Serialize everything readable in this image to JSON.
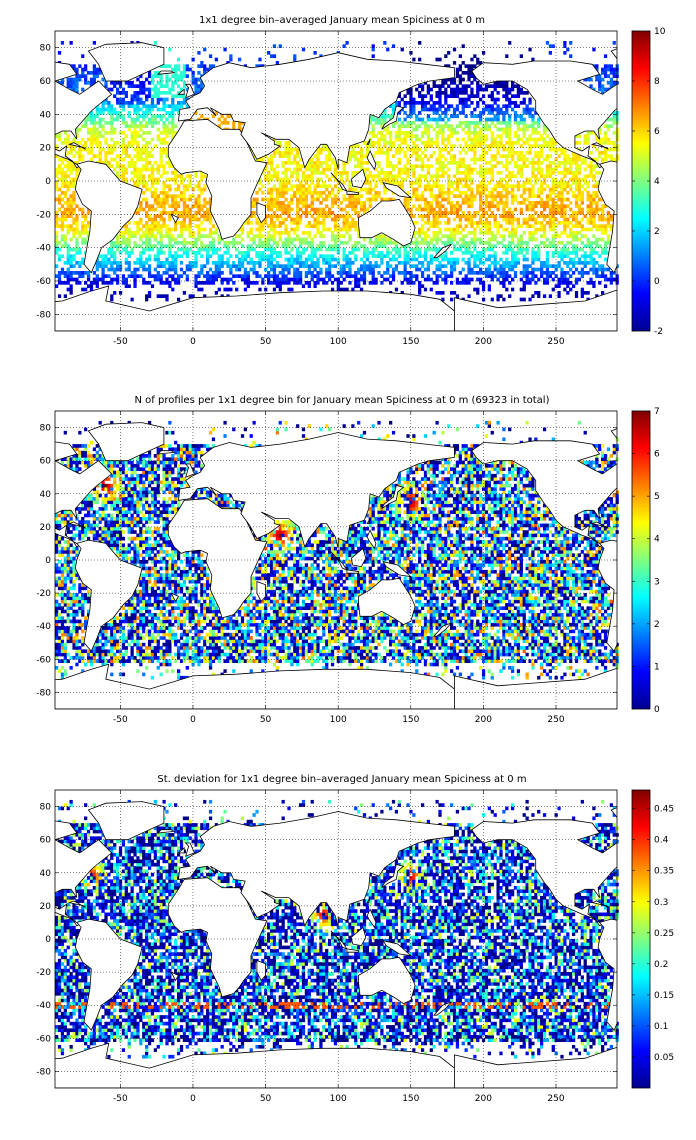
{
  "panels": [
    {
      "title": "1x1 degree bin–averaged January mean Spiciness at 0 m",
      "field": "mean",
      "colorbar": {
        "min": -2,
        "max": 10,
        "ticks": [
          "-2",
          "0",
          "2",
          "4",
          "6",
          "8",
          "10"
        ]
      }
    },
    {
      "title": "N of profiles per 1x1 degree bin for January mean Spiciness at 0 m (69323 in total)",
      "field": "count",
      "colorbar": {
        "min": 0,
        "max": 7,
        "ticks": [
          "0",
          "1",
          "2",
          "3",
          "4",
          "5",
          "6",
          "7"
        ]
      }
    },
    {
      "title": "St. deviation for 1x1 degree bin–averaged January mean Spiciness at 0 m",
      "field": "std",
      "colorbar": {
        "min": 0,
        "max": 0.48,
        "ticks": [
          "0.05",
          "0.1",
          "0.15",
          "0.2",
          "0.25",
          "0.3",
          "0.35",
          "0.4",
          "0.45"
        ]
      }
    }
  ],
  "chart_data": [
    {
      "type": "heatmap",
      "title": "1x1 degree bin–averaged January mean Spiciness at 0 m",
      "xlabel": "",
      "ylabel": "",
      "xlim": [
        -95,
        292
      ],
      "ylim": [
        -90,
        90
      ],
      "xticks": [
        -50,
        0,
        50,
        100,
        150,
        200,
        250
      ],
      "yticks": [
        -80,
        -60,
        -40,
        -20,
        0,
        20,
        40,
        60,
        80
      ],
      "grid": true,
      "colormap": "jet",
      "clim": [
        -2,
        10
      ],
      "background": "coastline map of world oceans",
      "zonal_profile": {
        "lat": [
          -70,
          -60,
          -50,
          -40,
          -30,
          -20,
          -10,
          0,
          10,
          20,
          30,
          40,
          50,
          60,
          70
        ],
        "value": [
          -1.5,
          -0.5,
          1.5,
          3.5,
          5.5,
          6.5,
          6.2,
          5.5,
          5.5,
          5.5,
          5.0,
          3.0,
          1.0,
          0.5,
          0.0
        ]
      }
    },
    {
      "type": "heatmap",
      "title": "N of profiles per 1x1 degree bin for January mean Spiciness at 0 m (69323 in total)",
      "xlabel": "",
      "ylabel": "",
      "xlim": [
        -95,
        292
      ],
      "ylim": [
        -90,
        90
      ],
      "xticks": [
        -50,
        0,
        50,
        100,
        150,
        200,
        250
      ],
      "yticks": [
        -80,
        -60,
        -40,
        -20,
        0,
        20,
        40,
        60,
        80
      ],
      "grid": true,
      "colormap": "jet",
      "clim": [
        0,
        7
      ],
      "total_profiles": 69323,
      "hotspots": [
        {
          "lon": 150,
          "lat": 35,
          "value": 7
        },
        {
          "lon": -60,
          "lat": 45,
          "value": 7
        },
        {
          "lon": 60,
          "lat": 15,
          "value": 7
        }
      ]
    },
    {
      "type": "heatmap",
      "title": "St. deviation for 1x1 degree bin–averaged January mean Spiciness at 0 m",
      "xlabel": "",
      "ylabel": "",
      "xlim": [
        -95,
        292
      ],
      "ylim": [
        -90,
        90
      ],
      "xticks": [
        -50,
        0,
        50,
        100,
        150,
        200,
        250
      ],
      "yticks": [
        -80,
        -60,
        -40,
        -20,
        0,
        20,
        40,
        60,
        80
      ],
      "grid": true,
      "colormap": "jet",
      "clim": [
        0,
        0.48
      ],
      "hotspots": [
        {
          "lon": 150,
          "lat": 38,
          "value": 0.45
        },
        {
          "lon": -70,
          "lat": 38,
          "value": 0.45
        },
        {
          "lon": 90,
          "lat": 15,
          "value": 0.45
        }
      ]
    }
  ]
}
